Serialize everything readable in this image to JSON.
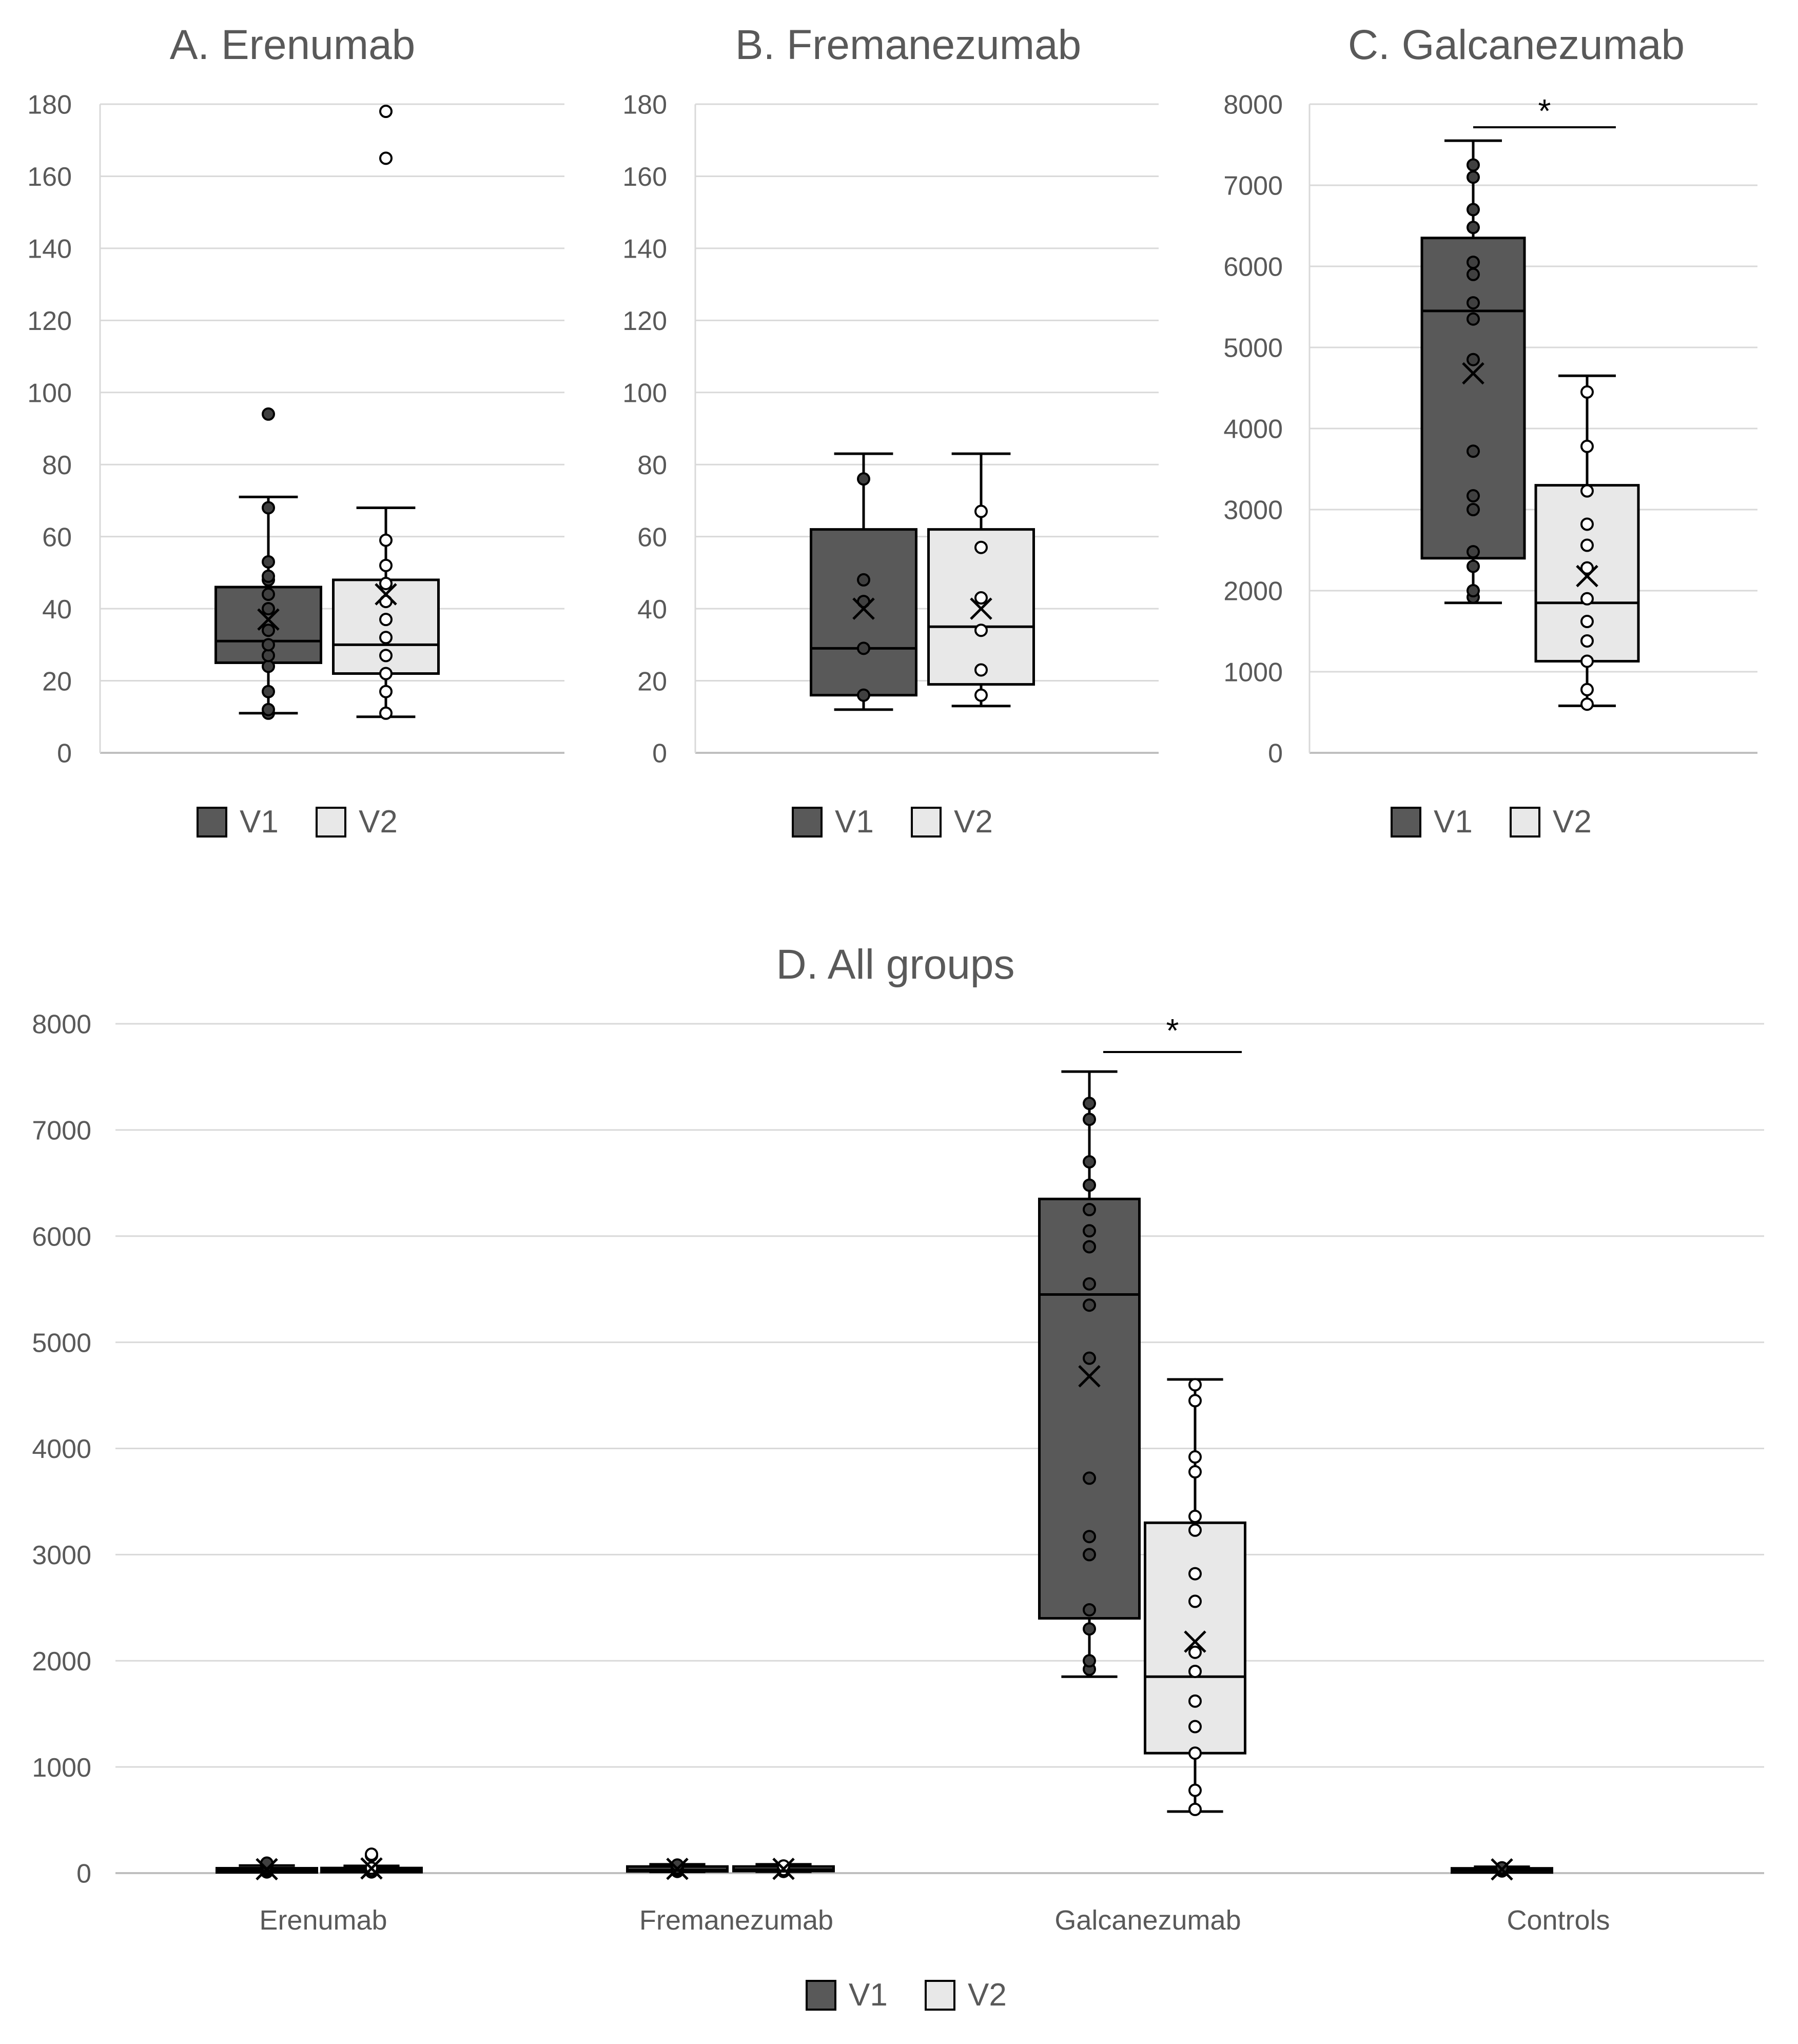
{
  "chart_data": [
    {
      "id": "A",
      "type": "boxplot",
      "title": "A. Erenumab",
      "ylim": [
        0,
        180
      ],
      "yticks": [
        0,
        20,
        40,
        60,
        80,
        100,
        120,
        140,
        160,
        180
      ],
      "grid": true,
      "legend": [
        "V1",
        "V2"
      ],
      "legend_position": "bottom",
      "series": [
        {
          "name": "V1",
          "color": "#595959",
          "min": 11,
          "q1": 25,
          "median": 31,
          "q3": 46,
          "max": 71,
          "mean": 37,
          "points": [
            11,
            12,
            17,
            24,
            27,
            30,
            34,
            40,
            44,
            48,
            49,
            53,
            68,
            94
          ]
        },
        {
          "name": "V2",
          "color": "#e8e8e8",
          "min": 10,
          "q1": 22,
          "median": 30,
          "q3": 48,
          "max": 68,
          "mean": 44,
          "points": [
            11,
            17,
            22,
            27,
            32,
            37,
            42,
            47,
            52,
            59,
            165,
            178
          ]
        }
      ]
    },
    {
      "id": "B",
      "type": "boxplot",
      "title": "B. Fremanezumab",
      "ylim": [
        0,
        180
      ],
      "yticks": [
        0,
        20,
        40,
        60,
        80,
        100,
        120,
        140,
        160,
        180
      ],
      "grid": true,
      "legend": [
        "V1",
        "V2"
      ],
      "legend_position": "bottom",
      "series": [
        {
          "name": "V1",
          "color": "#595959",
          "min": 12,
          "q1": 16,
          "median": 29,
          "q3": 62,
          "max": 83,
          "mean": 40,
          "points": [
            16,
            29,
            42,
            48,
            76
          ]
        },
        {
          "name": "V2",
          "color": "#e8e8e8",
          "min": 13,
          "q1": 19,
          "median": 35,
          "q3": 62,
          "max": 83,
          "mean": 40,
          "points": [
            16,
            23,
            34,
            43,
            57,
            67
          ]
        }
      ]
    },
    {
      "id": "C",
      "type": "boxplot",
      "title": "C. Galcanezumab",
      "ylim": [
        0,
        8000
      ],
      "yticks": [
        0,
        1000,
        2000,
        3000,
        4000,
        5000,
        6000,
        7000,
        8000
      ],
      "grid": true,
      "legend": [
        "V1",
        "V2"
      ],
      "legend_position": "bottom",
      "annotation": "*",
      "series": [
        {
          "name": "V1",
          "color": "#595959",
          "min": 1850,
          "q1": 2400,
          "median": 5450,
          "q3": 6350,
          "max": 7550,
          "mean": 4680,
          "points": [
            1920,
            2000,
            2300,
            2480,
            3000,
            3170,
            3720,
            4850,
            5350,
            5550,
            5900,
            6050,
            6480,
            6700,
            7100,
            7250
          ]
        },
        {
          "name": "V2",
          "color": "#e8e8e8",
          "min": 580,
          "q1": 1130,
          "median": 1850,
          "q3": 3300,
          "max": 4650,
          "mean": 2180,
          "points": [
            600,
            780,
            1130,
            1380,
            1620,
            1900,
            2280,
            2560,
            2820,
            3230,
            3780,
            4450
          ]
        }
      ]
    },
    {
      "id": "D",
      "type": "boxplot",
      "title": "D. All groups",
      "categories": [
        "Erenumab",
        "Fremanezumab",
        "Galcanezumab",
        "Controls"
      ],
      "ylim": [
        0,
        8000
      ],
      "yticks": [
        0,
        1000,
        2000,
        3000,
        4000,
        5000,
        6000,
        7000,
        8000
      ],
      "grid": true,
      "legend": [
        "V1",
        "V2"
      ],
      "legend_position": "bottom",
      "annotation": "*",
      "series": [
        {
          "name": "V1",
          "color": "#595959",
          "boxes": [
            {
              "min": 11,
              "q1": 25,
              "median": 31,
              "q3": 46,
              "max": 71,
              "mean": 37,
              "points": [
                11,
                24,
                34,
                49,
                68,
                94
              ]
            },
            {
              "min": 12,
              "q1": 16,
              "median": 29,
              "q3": 62,
              "max": 83,
              "mean": 40,
              "points": [
                16,
                29,
                48,
                76
              ]
            },
            {
              "min": 1850,
              "q1": 2400,
              "median": 5450,
              "q3": 6350,
              "max": 7550,
              "mean": 4680,
              "points": [
                1920,
                2000,
                2300,
                2480,
                3000,
                3170,
                3720,
                4850,
                5350,
                5550,
                5900,
                6050,
                6250,
                6480,
                6700,
                7100,
                7250
              ]
            },
            {
              "min": 15,
              "q1": 22,
              "median": 30,
              "q3": 45,
              "max": 60,
              "mean": 35,
              "points": [
                20,
                35,
                50
              ]
            }
          ]
        },
        {
          "name": "V2",
          "color": "#e8e8e8",
          "boxes": [
            {
              "min": 10,
              "q1": 22,
              "median": 30,
              "q3": 48,
              "max": 68,
              "mean": 44,
              "points": [
                11,
                27,
                47,
                165,
                178
              ]
            },
            {
              "min": 13,
              "q1": 19,
              "median": 35,
              "q3": 62,
              "max": 83,
              "mean": 40,
              "points": [
                16,
                34,
                67
              ]
            },
            {
              "min": 580,
              "q1": 1130,
              "median": 1850,
              "q3": 3300,
              "max": 4650,
              "mean": 2180,
              "points": [
                600,
                780,
                1130,
                1380,
                1620,
                1900,
                2080,
                2560,
                2820,
                3230,
                3360,
                3780,
                3920,
                4450,
                4600
              ]
            },
            null
          ]
        }
      ]
    }
  ]
}
